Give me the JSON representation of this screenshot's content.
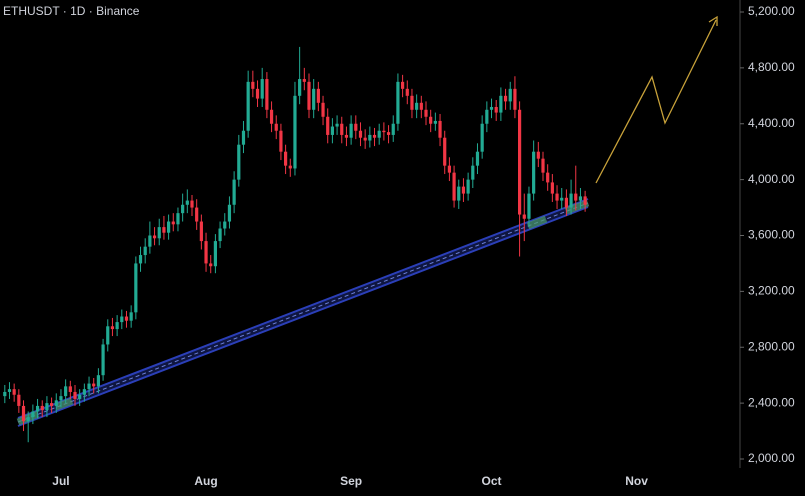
{
  "chart_data": {
    "type": "candlestick",
    "title": "ETHUSDT · 1D · Binance",
    "up_color": "#22ab94",
    "down_color": "#f23645",
    "categories": [
      null,
      null,
      null,
      null,
      null,
      null,
      null,
      null,
      null,
      null,
      null,
      null,
      "Jul",
      null,
      null,
      null,
      null,
      null,
      null,
      null,
      null,
      null,
      null,
      null,
      null,
      null,
      null,
      null,
      null,
      null,
      null,
      null,
      null,
      null,
      null,
      null,
      null,
      null,
      null,
      null,
      null,
      null,
      null,
      "Aug",
      null,
      null,
      null,
      null,
      null,
      null,
      null,
      null,
      null,
      null,
      null,
      null,
      null,
      null,
      null,
      null,
      null,
      null,
      null,
      null,
      null,
      null,
      null,
      null,
      null,
      null,
      null,
      null,
      null,
      null,
      "Sep",
      null,
      null,
      null,
      null,
      null,
      null,
      null,
      null,
      null,
      null,
      null,
      null,
      null,
      null,
      null,
      null,
      null,
      null,
      null,
      null,
      null,
      null,
      null,
      null,
      null,
      null,
      null,
      null,
      null,
      "Oct",
      null,
      null,
      null,
      null,
      null,
      null,
      null,
      null,
      null,
      null,
      null,
      null,
      null,
      null,
      null,
      null,
      null,
      null,
      null,
      null,
      null,
      null,
      null,
      null,
      null,
      null,
      null,
      null,
      null,
      null,
      "Nov",
      null,
      null,
      null,
      null,
      null,
      null,
      null,
      null,
      null,
      null,
      null,
      null,
      null,
      null,
      null,
      null,
      null,
      null,
      null,
      null,
      null
    ],
    "open": [
      2450,
      2480,
      2500,
      2460,
      2380,
      2270,
      2300,
      2340,
      2380,
      2350,
      2400,
      2380,
      2420,
      2450,
      2520,
      2480,
      2430,
      2460,
      2500,
      2540,
      2520,
      2600,
      2820,
      2950,
      2930,
      2980,
      3020,
      2990,
      3050,
      3400,
      3460,
      3520,
      3600,
      3580,
      3660,
      3620,
      3700,
      3680,
      3760,
      3820,
      3850,
      3800,
      3700,
      3560,
      3400,
      3380,
      3560,
      3650,
      3700,
      3820,
      4000,
      4250,
      4350,
      4700,
      4650,
      4580,
      4720,
      4500,
      4400,
      4350,
      4200,
      4100,
      4080,
      4600,
      4720,
      4700,
      4500,
      4650,
      4550,
      4450,
      4320,
      4380,
      4400,
      4320,
      4300,
      4400,
      4350,
      4300,
      4280,
      4320,
      4300,
      4350,
      4340,
      4320,
      4400,
      4700,
      4650,
      4600,
      4500,
      4550,
      4500,
      4450,
      4400,
      4420,
      4300,
      4100,
      4050,
      3850,
      3950,
      3900,
      4000,
      4100,
      4200,
      4400,
      4500,
      4520,
      4480,
      4600,
      4560,
      4650,
      4500,
      3750,
      3720,
      3900,
      4200,
      4150,
      4050,
      3980,
      3900,
      3850,
      3870,
      3800,
      3900,
      3850,
      3880,
      null,
      null,
      null,
      null,
      null,
      null,
      null,
      null,
      null,
      null,
      null,
      null,
      null,
      null,
      null,
      null,
      null,
      null,
      null,
      null,
      null,
      null,
      null,
      null,
      null,
      null,
      null,
      null,
      null,
      null,
      null,
      null
    ],
    "high": [
      2530,
      2550,
      2540,
      2500,
      2420,
      2340,
      2390,
      2430,
      2420,
      2450,
      2440,
      2470,
      2500,
      2570,
      2560,
      2530,
      2500,
      2540,
      2590,
      2580,
      2650,
      2860,
      3000,
      3010,
      3030,
      3070,
      3060,
      3100,
      3450,
      3520,
      3580,
      3700,
      3660,
      3720,
      3740,
      3750,
      3760,
      3800,
      3900,
      3930,
      3890,
      3860,
      3750,
      3620,
      3460,
      3610,
      3700,
      3760,
      3880,
      4060,
      4320,
      4420,
      4780,
      4780,
      4710,
      4800,
      4770,
      4560,
      4460,
      4400,
      4250,
      4150,
      4700,
      4950,
      4800,
      4760,
      4720,
      4700,
      4600,
      4510,
      4440,
      4460,
      4450,
      4380,
      4460,
      4460,
      4410,
      4360,
      4380,
      4370,
      4400,
      4410,
      4390,
      4460,
      4760,
      4750,
      4710,
      4650,
      4610,
      4600,
      4560,
      4500,
      4480,
      4470,
      4350,
      4160,
      4100,
      4000,
      4010,
      4050,
      4160,
      4260,
      4460,
      4560,
      4580,
      4570,
      4660,
      4650,
      4700,
      4740,
      4560,
      3900,
      3950,
      4280,
      4270,
      4200,
      4110,
      4040,
      3960,
      3940,
      3930,
      4000,
      4100,
      3940,
      3920,
      null,
      null,
      null,
      null,
      null,
      null,
      null,
      null,
      null,
      null,
      null,
      null,
      null,
      null,
      null,
      null,
      null,
      null,
      null,
      null,
      null,
      null,
      null,
      null,
      null,
      null,
      null,
      null,
      null,
      null,
      null,
      null
    ],
    "low": [
      2400,
      2430,
      2410,
      2330,
      2200,
      2120,
      2250,
      2290,
      2300,
      2300,
      2330,
      2330,
      2370,
      2400,
      2430,
      2380,
      2380,
      2410,
      2450,
      2470,
      2470,
      2560,
      2770,
      2880,
      2880,
      2930,
      2940,
      2940,
      3000,
      3340,
      3400,
      3470,
      3530,
      3530,
      3570,
      3570,
      3630,
      3630,
      3700,
      3760,
      3740,
      3640,
      3500,
      3340,
      3330,
      3330,
      3510,
      3600,
      3650,
      3760,
      3950,
      4190,
      4300,
      4590,
      4520,
      4520,
      4440,
      4340,
      4290,
      4140,
      4040,
      4020,
      4030,
      4540,
      4640,
      4440,
      4440,
      4490,
      4390,
      4260,
      4260,
      4320,
      4260,
      4240,
      4250,
      4290,
      4240,
      4220,
      4230,
      4240,
      4250,
      4280,
      4260,
      4270,
      4350,
      4590,
      4540,
      4440,
      4440,
      4440,
      4390,
      4340,
      4350,
      4240,
      4040,
      3990,
      3800,
      3790,
      3840,
      3850,
      3940,
      4040,
      4150,
      4340,
      4440,
      4420,
      4420,
      4500,
      4500,
      4440,
      3450,
      3560,
      3660,
      3850,
      4090,
      3990,
      3920,
      3840,
      3790,
      3790,
      3740,
      3750,
      3780,
      3790,
      3770,
      null,
      null,
      null,
      null,
      null,
      null,
      null,
      null,
      null,
      null,
      null,
      null,
      null,
      null,
      null,
      null,
      null,
      null,
      null,
      null,
      null,
      null,
      null,
      null,
      null,
      null,
      null,
      null,
      null,
      null,
      null,
      null
    ],
    "close": [
      2480,
      2500,
      2460,
      2380,
      2270,
      2300,
      2340,
      2380,
      2350,
      2400,
      2380,
      2420,
      2450,
      2520,
      2480,
      2430,
      2460,
      2500,
      2540,
      2520,
      2600,
      2820,
      2950,
      2930,
      2980,
      3020,
      2990,
      3050,
      3400,
      3460,
      3520,
      3600,
      3580,
      3660,
      3620,
      3700,
      3680,
      3760,
      3820,
      3850,
      3800,
      3700,
      3560,
      3400,
      3380,
      3560,
      3650,
      3700,
      3820,
      4000,
      4250,
      4350,
      4700,
      4650,
      4580,
      4720,
      4500,
      4400,
      4350,
      4200,
      4100,
      4080,
      4600,
      4720,
      4700,
      4500,
      4650,
      4550,
      4450,
      4320,
      4380,
      4400,
      4320,
      4300,
      4400,
      4350,
      4300,
      4280,
      4320,
      4300,
      4350,
      4340,
      4320,
      4400,
      4700,
      4650,
      4600,
      4500,
      4550,
      4500,
      4450,
      4400,
      4420,
      4300,
      4100,
      4050,
      3850,
      3950,
      3900,
      4000,
      4100,
      4200,
      4400,
      4500,
      4520,
      4480,
      4600,
      4560,
      4650,
      4500,
      3750,
      3720,
      3900,
      4200,
      4150,
      4050,
      3980,
      3900,
      3850,
      3870,
      3800,
      3900,
      3850,
      3880,
      3820,
      null,
      null,
      null,
      null,
      null,
      null,
      null,
      null,
      null,
      null,
      null,
      null,
      null,
      null,
      null,
      null,
      null,
      null,
      null,
      null,
      null,
      null,
      null,
      null,
      null,
      null,
      null,
      null,
      null,
      null,
      null,
      null
    ],
    "ylim": [
      2000,
      5200
    ],
    "yticks": [
      {
        "value": 2000,
        "label": "2,000.00"
      },
      {
        "value": 2400,
        "label": "2,400.00"
      },
      {
        "value": 2800,
        "label": "2,800.00"
      },
      {
        "value": 3200,
        "label": "3,200.00"
      },
      {
        "value": 3600,
        "label": "3,600.00"
      },
      {
        "value": 4000,
        "label": "4,000.00"
      },
      {
        "value": 4400,
        "label": "4,400.00"
      },
      {
        "value": 4800,
        "label": "4,800.00"
      },
      {
        "value": 5200,
        "label": "5,200.00"
      }
    ]
  }
}
